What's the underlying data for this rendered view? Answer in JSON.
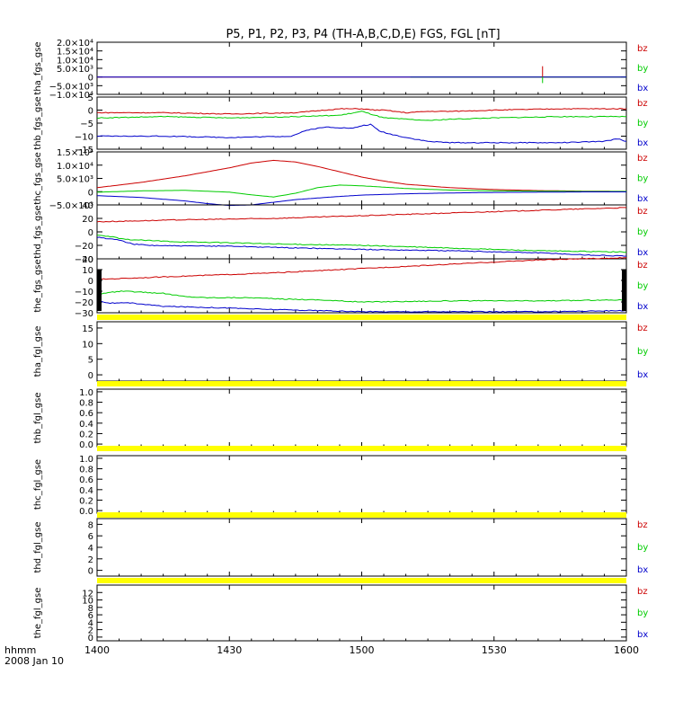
{
  "title": "P5, P1, P2, P3, P4 (TH-A,B,C,D,E) FGS, FGL [nT]",
  "time_axis": {
    "label_line1": "hhmm",
    "label_line2": "2008 Jan 10",
    "ticks": [
      "1400",
      "1430",
      "1500",
      "1530",
      "1600"
    ]
  },
  "colors": {
    "bz": "#cc0000",
    "by": "#00cc00",
    "bx": "#0000cc",
    "flag": "#ffff00",
    "axis": "#000000"
  },
  "chart_data": [
    {
      "type": "line",
      "ylabel": "tha_fgs_gse",
      "yticks": [
        "2.0×10⁴",
        "1.5×10⁴",
        "1.0×10⁴",
        "5.0×10³",
        "0",
        "−5.0×10³",
        "−1.0×10⁴"
      ],
      "ylim": [
        -10000,
        20000
      ],
      "x_range": [
        0,
        120
      ],
      "components": [
        "bz",
        "by",
        "bx"
      ],
      "series": [
        {
          "name": "bz",
          "x": [
            0,
            118,
            118,
            120
          ],
          "y": [
            0,
            0,
            0,
            0
          ]
        },
        {
          "name": "by",
          "x": [
            71,
            101,
            101,
            120
          ],
          "y": [
            0,
            0,
            0,
            0
          ]
        },
        {
          "name": "bx",
          "x": [
            0,
            120
          ],
          "y": [
            0,
            0
          ]
        }
      ],
      "spike": {
        "x": 101,
        "ymin": -3500,
        "ymax": 6200
      }
    },
    {
      "type": "line",
      "ylabel": "thb_fgs_gse",
      "yticks": [
        "5",
        "0",
        "−5",
        "−10",
        "−15"
      ],
      "ylim": [
        -15,
        5
      ],
      "x_range": [
        0,
        120
      ],
      "components": [
        "bz",
        "by",
        "bx"
      ],
      "series": [
        {
          "name": "bz",
          "x": [
            0,
            15,
            30,
            45,
            55,
            60,
            63,
            65,
            70,
            75,
            80,
            90,
            105,
            118,
            120
          ],
          "y": [
            -1.0,
            -1.0,
            -1.5,
            -1.0,
            0.5,
            0.5,
            0.0,
            0.0,
            -1.0,
            -0.5,
            -0.5,
            0.0,
            0.5,
            0.5,
            0.5
          ]
        },
        {
          "name": "by",
          "x": [
            0,
            15,
            30,
            45,
            55,
            60,
            63,
            65,
            70,
            75,
            80,
            90,
            105,
            118,
            120
          ],
          "y": [
            -3.0,
            -2.5,
            -3.0,
            -2.5,
            -2.0,
            -0.5,
            -2.0,
            -3.0,
            -3.5,
            -4.0,
            -3.5,
            -3.0,
            -2.5,
            -2.5,
            -2.5
          ]
        },
        {
          "name": "bx",
          "x": [
            0,
            15,
            30,
            44,
            48,
            52,
            58,
            60,
            62,
            64,
            66,
            70,
            75,
            80,
            90,
            105,
            115,
            118,
            120
          ],
          "y": [
            -10.0,
            -10.0,
            -10.5,
            -10.0,
            -7.5,
            -6.5,
            -7.0,
            -6.0,
            -5.5,
            -8.0,
            -9.0,
            -10.5,
            -12.0,
            -12.5,
            -12.5,
            -12.5,
            -12.0,
            -11.0,
            -12.0
          ]
        }
      ]
    },
    {
      "type": "line",
      "ylabel": "thc_fgs_gse",
      "yticks": [
        "1.5×10⁴",
        "1.0×10⁴",
        "5.0×10³",
        "0",
        "−5.0×10³"
      ],
      "ylim": [
        -5000,
        15000
      ],
      "x_range": [
        0,
        120
      ],
      "components": [
        "bz",
        "by",
        "bx"
      ],
      "series": [
        {
          "name": "bz",
          "x": [
            0,
            10,
            20,
            30,
            35,
            40,
            45,
            50,
            55,
            60,
            65,
            70,
            80,
            90,
            100,
            110,
            120
          ],
          "y": [
            1500,
            3500,
            6000,
            9000,
            10800,
            11800,
            11200,
            9500,
            7500,
            5500,
            4000,
            2800,
            1500,
            800,
            400,
            200,
            100
          ]
        },
        {
          "name": "by",
          "x": [
            0,
            10,
            20,
            30,
            35,
            40,
            45,
            50,
            55,
            60,
            70,
            80,
            90,
            100,
            110,
            120
          ],
          "y": [
            -200,
            300,
            500,
            -200,
            -1200,
            -2000,
            -600,
            1500,
            2500,
            2200,
            1200,
            600,
            300,
            200,
            100,
            100
          ]
        },
        {
          "name": "bx",
          "x": [
            0,
            10,
            20,
            25,
            30,
            35,
            40,
            45,
            50,
            55,
            60,
            70,
            80,
            90,
            100,
            110,
            120
          ],
          "y": [
            -1500,
            -2200,
            -3500,
            -4500,
            -5200,
            -5000,
            -4000,
            -3000,
            -2400,
            -1800,
            -1300,
            -800,
            -500,
            -300,
            -200,
            -100,
            -100
          ]
        }
      ]
    },
    {
      "type": "line",
      "ylabel": "thd_fgs_gse",
      "yticks": [
        "40",
        "20",
        "0",
        "−20",
        "−40"
      ],
      "ylim": [
        -40,
        40
      ],
      "x_range": [
        0,
        120
      ],
      "components": [
        "bz",
        "by",
        "bx"
      ],
      "series": [
        {
          "name": "bz",
          "x": [
            0,
            20,
            40,
            60,
            80,
            100,
            120
          ],
          "y": [
            15,
            18,
            20,
            24,
            28,
            32,
            36
          ]
        },
        {
          "name": "by",
          "x": [
            0,
            3,
            6,
            12,
            20,
            30,
            40,
            60,
            80,
            100,
            120
          ],
          "y": [
            -5,
            -7,
            -11,
            -13,
            -15,
            -16,
            -18,
            -20,
            -24,
            -28,
            -30
          ]
        },
        {
          "name": "bx",
          "x": [
            0,
            5,
            8,
            12,
            20,
            30,
            40,
            60,
            80,
            100,
            110,
            120
          ],
          "y": [
            -8,
            -12,
            -18,
            -20,
            -21,
            -21,
            -23,
            -26,
            -28,
            -31,
            -34,
            -36
          ]
        }
      ]
    },
    {
      "type": "line",
      "ylabel": "the_fgs_gse",
      "yticks": [
        "20",
        "10",
        "0",
        "−10",
        "−20",
        "−30"
      ],
      "ylim": [
        -30,
        20
      ],
      "x_range": [
        0,
        120
      ],
      "components": [
        "bz",
        "by",
        "bx"
      ],
      "series": [
        {
          "name": "bz",
          "x": [
            0,
            20,
            40,
            60,
            80,
            100,
            120
          ],
          "y": [
            1,
            4,
            7,
            11,
            15,
            19,
            21
          ]
        },
        {
          "name": "by",
          "x": [
            0,
            3,
            6,
            15,
            20,
            25,
            35,
            40,
            50,
            60,
            80,
            100,
            120
          ],
          "y": [
            -13,
            -11,
            -10,
            -12,
            -15,
            -16,
            -16,
            -17,
            -18,
            -20,
            -19,
            -19,
            -18
          ]
        },
        {
          "name": "bx",
          "x": [
            0,
            3,
            8,
            15,
            25,
            40,
            50,
            60,
            80,
            100,
            120
          ],
          "y": [
            -19,
            -21,
            -21,
            -24,
            -25,
            -27,
            -28,
            -29,
            -29,
            -29,
            -28
          ]
        }
      ]
    },
    {
      "type": "line",
      "ylabel": "tha_fgl_gse",
      "yticks": [
        "15",
        "10",
        "5",
        "0"
      ],
      "ylim": [
        -2,
        17
      ],
      "x_range": [
        0,
        120
      ],
      "components": [
        "bz",
        "by",
        "bx"
      ],
      "series": []
    },
    {
      "type": "line",
      "ylabel": "thb_fgl_gse",
      "yticks": [
        "1.0",
        "0.8",
        "0.6",
        "0.4",
        "0.2",
        "0.0"
      ],
      "ylim": [
        -0.05,
        1.05
      ],
      "x_range": [
        0,
        120
      ],
      "components": [],
      "series": []
    },
    {
      "type": "line",
      "ylabel": "thc_fgl_gse",
      "yticks": [
        "1.0",
        "0.8",
        "0.6",
        "0.4",
        "0.2",
        "0.0"
      ],
      "ylim": [
        -0.05,
        1.05
      ],
      "x_range": [
        0,
        120
      ],
      "components": [],
      "series": []
    },
    {
      "type": "line",
      "ylabel": "thd_fgl_gse",
      "yticks": [
        "8",
        "6",
        "4",
        "2",
        "0"
      ],
      "ylim": [
        -1,
        9
      ],
      "x_range": [
        0,
        120
      ],
      "components": [
        "bz",
        "by",
        "bx"
      ],
      "series": []
    },
    {
      "type": "line",
      "ylabel": "the_fgl_gse",
      "yticks": [
        "12",
        "10",
        "8",
        "6",
        "4",
        "2",
        "0"
      ],
      "ylim": [
        -1,
        14
      ],
      "x_range": [
        0,
        120
      ],
      "components": [
        "bz",
        "by",
        "bx"
      ],
      "series": []
    }
  ]
}
